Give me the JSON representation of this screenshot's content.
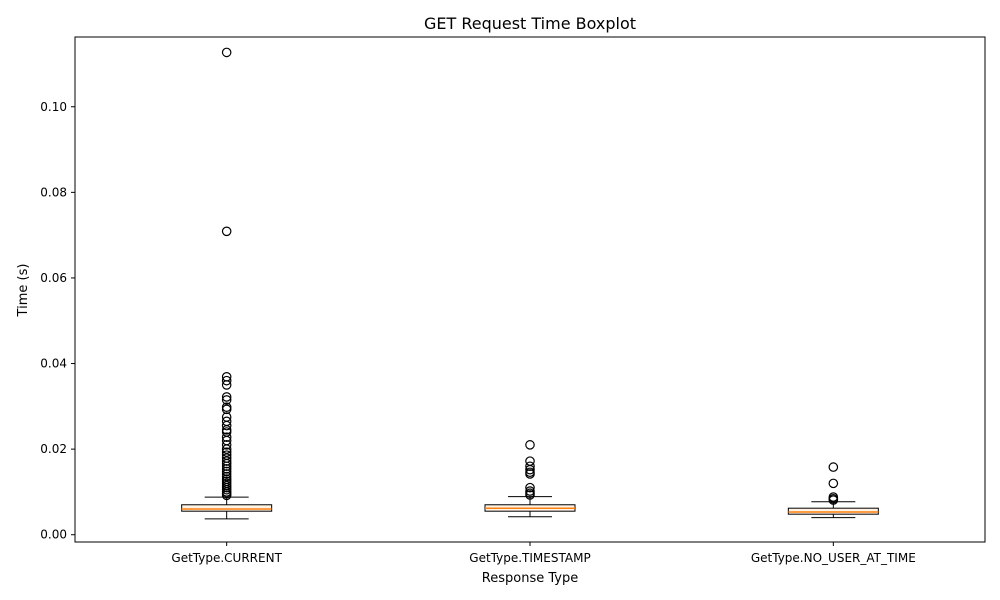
{
  "chart_data": {
    "type": "boxplot",
    "title": "GET Request Time Boxplot",
    "xlabel": "Response Type",
    "ylabel": "Time (s)",
    "ylim": [
      -0.0017,
      0.1163
    ],
    "yticks": [
      0.0,
      0.02,
      0.04,
      0.06,
      0.08,
      0.1
    ],
    "ytick_labels": [
      "0.00",
      "0.02",
      "0.04",
      "0.06",
      "0.08",
      "0.10"
    ],
    "grid": false,
    "categories": [
      "GetType.CURRENT",
      "GetType.TIMESTAMP",
      "GetType.NO_USER_AT_TIME"
    ],
    "boxes": [
      {
        "category": "GetType.CURRENT",
        "whisker_low": 0.0037,
        "q1": 0.0055,
        "median": 0.006,
        "q3": 0.007,
        "whisker_high": 0.0088,
        "outliers": [
          0.1127,
          0.0709,
          0.0369,
          0.036,
          0.035,
          0.0322,
          0.0315,
          0.0298,
          0.0293,
          0.0275,
          0.0265,
          0.0255,
          0.0245,
          0.024,
          0.0228,
          0.022,
          0.021,
          0.02,
          0.0193,
          0.0186,
          0.0179,
          0.0172,
          0.0166,
          0.016,
          0.0154,
          0.0148,
          0.0142,
          0.0136,
          0.013,
          0.0125,
          0.012,
          0.0115,
          0.011,
          0.0105,
          0.01,
          0.0096,
          0.0092
        ]
      },
      {
        "category": "GetType.TIMESTAMP",
        "whisker_low": 0.0042,
        "q1": 0.0055,
        "median": 0.0062,
        "q3": 0.007,
        "whisker_high": 0.0089,
        "outliers": [
          0.021,
          0.0172,
          0.016,
          0.0152,
          0.0146,
          0.0142,
          0.011,
          0.0102,
          0.0097,
          0.0093
        ]
      },
      {
        "category": "GetType.NO_USER_AT_TIME",
        "whisker_low": 0.004,
        "q1": 0.0048,
        "median": 0.0053,
        "q3": 0.0062,
        "whisker_high": 0.0077,
        "outliers": [
          0.0158,
          0.012,
          0.0088,
          0.0084,
          0.0081
        ]
      }
    ],
    "colors": {
      "box_edge": "#000000",
      "median": "#ff7f0e",
      "box_fill": "#fff3e6",
      "axes": "#000000"
    }
  }
}
